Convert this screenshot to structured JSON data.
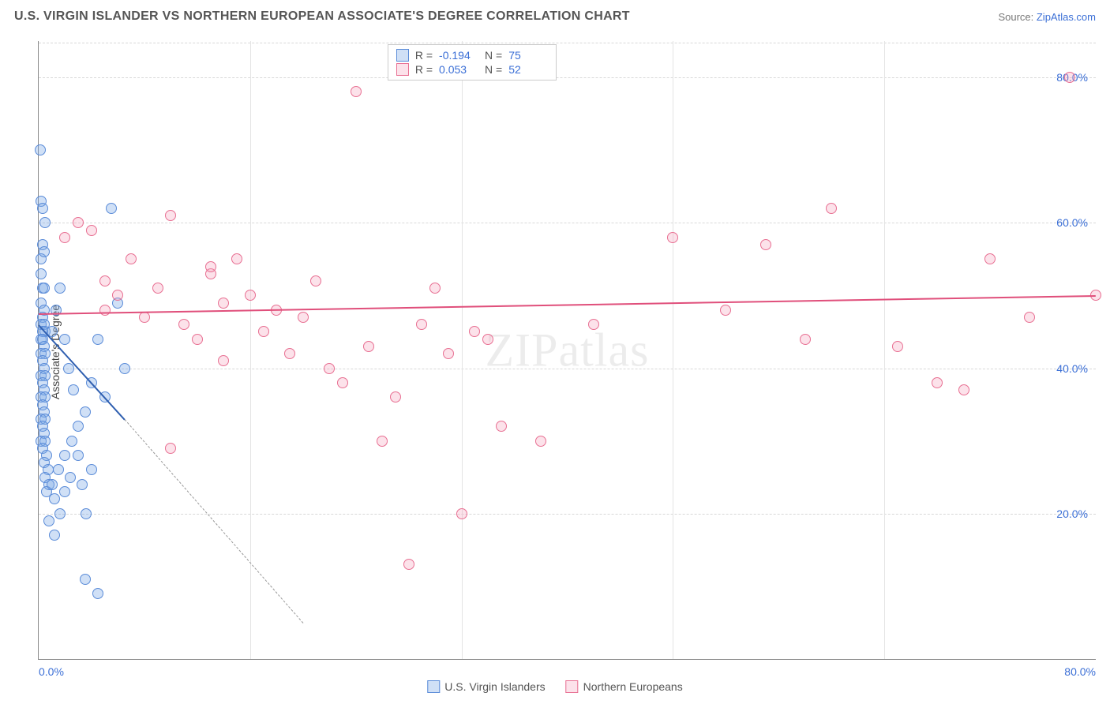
{
  "title": "U.S. VIRGIN ISLANDER VS NORTHERN EUROPEAN ASSOCIATE'S DEGREE CORRELATION CHART",
  "source_label": "Source: ",
  "source_name": "ZipAtlas.com",
  "ylabel": "Associate's Degree",
  "watermark_a": "ZIP",
  "watermark_b": "atlas",
  "chart": {
    "type": "scatter",
    "xlim": [
      0,
      80
    ],
    "ylim": [
      0,
      85
    ],
    "grid_color": "#d8d8d8",
    "background_color": "#ffffff",
    "axis_color": "#888",
    "y_ticks": [
      {
        "v": 20,
        "label": "20.0%"
      },
      {
        "v": 40,
        "label": "40.0%"
      },
      {
        "v": 60,
        "label": "60.0%"
      },
      {
        "v": 80,
        "label": "80.0%"
      }
    ],
    "x_ticks_minor": [
      16,
      32,
      48,
      64
    ],
    "x_tick_left": "0.0%",
    "x_tick_right": "80.0%",
    "marker_radius": 7,
    "marker_border_width": 1.2,
    "series": [
      {
        "name": "U.S. Virgin Islanders",
        "fill": "rgba(120,165,230,0.35)",
        "stroke": "#5a8bd8",
        "R": "-0.194",
        "N": "75",
        "trend": {
          "x1": 0,
          "y1": 46,
          "x2": 6.5,
          "y2": 33,
          "solid": true,
          "dash_ext": {
            "x2": 20,
            "y2": 5
          },
          "color": "#2f5fb0",
          "width": 2
        },
        "points": [
          [
            0.1,
            70
          ],
          [
            0.2,
            63
          ],
          [
            0.3,
            62
          ],
          [
            0.3,
            57
          ],
          [
            0.2,
            55
          ],
          [
            0.4,
            56
          ],
          [
            0.2,
            53
          ],
          [
            0.3,
            51
          ],
          [
            0.4,
            51
          ],
          [
            0.2,
            49
          ],
          [
            0.4,
            48
          ],
          [
            0.3,
            47
          ],
          [
            0.2,
            46
          ],
          [
            0.4,
            46
          ],
          [
            0.3,
            45
          ],
          [
            0.5,
            45
          ],
          [
            0.2,
            44
          ],
          [
            0.3,
            44
          ],
          [
            0.4,
            43
          ],
          [
            0.2,
            42
          ],
          [
            0.5,
            42
          ],
          [
            0.3,
            41
          ],
          [
            0.4,
            40
          ],
          [
            0.2,
            39
          ],
          [
            0.5,
            39
          ],
          [
            0.3,
            38
          ],
          [
            0.4,
            37
          ],
          [
            0.2,
            36
          ],
          [
            0.5,
            36
          ],
          [
            0.3,
            35
          ],
          [
            0.4,
            34
          ],
          [
            0.2,
            33
          ],
          [
            0.5,
            33
          ],
          [
            0.3,
            32
          ],
          [
            0.4,
            31
          ],
          [
            0.2,
            30
          ],
          [
            0.5,
            30
          ],
          [
            0.3,
            29
          ],
          [
            0.6,
            28
          ],
          [
            0.4,
            27
          ],
          [
            0.7,
            26
          ],
          [
            0.5,
            25
          ],
          [
            0.8,
            24
          ],
          [
            0.6,
            23
          ],
          [
            1.0,
            24
          ],
          [
            1.2,
            22
          ],
          [
            1.5,
            26
          ],
          [
            2.0,
            28
          ],
          [
            2.5,
            30
          ],
          [
            3.0,
            32
          ],
          [
            3.5,
            34
          ],
          [
            4.0,
            38
          ],
          [
            4.5,
            44
          ],
          [
            5.0,
            36
          ],
          [
            5.5,
            62
          ],
          [
            6.0,
            49
          ],
          [
            6.5,
            40
          ],
          [
            1.0,
            45
          ],
          [
            1.3,
            48
          ],
          [
            1.6,
            51
          ],
          [
            2.0,
            44
          ],
          [
            2.3,
            40
          ],
          [
            2.6,
            37
          ],
          [
            3.0,
            28
          ],
          [
            3.3,
            24
          ],
          [
            3.6,
            20
          ],
          [
            4.0,
            26
          ],
          [
            0.8,
            19
          ],
          [
            1.2,
            17
          ],
          [
            1.6,
            20
          ],
          [
            2.0,
            23
          ],
          [
            2.4,
            25
          ],
          [
            3.5,
            11
          ],
          [
            4.5,
            9
          ],
          [
            0.5,
            60
          ]
        ]
      },
      {
        "name": "Northern Europeans",
        "fill": "rgba(245,160,185,0.30)",
        "stroke": "#e86f92",
        "R": "0.053",
        "N": "52",
        "trend": {
          "x1": 0,
          "y1": 47.5,
          "x2": 80,
          "y2": 50,
          "solid": true,
          "color": "#e04f7b",
          "width": 2
        },
        "points": [
          [
            2,
            58
          ],
          [
            3,
            60
          ],
          [
            4,
            59
          ],
          [
            5,
            52
          ],
          [
            6,
            50
          ],
          [
            7,
            55
          ],
          [
            8,
            47
          ],
          [
            9,
            51
          ],
          [
            10,
            61
          ],
          [
            11,
            46
          ],
          [
            12,
            44
          ],
          [
            13,
            53
          ],
          [
            14,
            49
          ],
          [
            15,
            55
          ],
          [
            16,
            50
          ],
          [
            17,
            45
          ],
          [
            18,
            48
          ],
          [
            19,
            42
          ],
          [
            20,
            47
          ],
          [
            21,
            52
          ],
          [
            22,
            40
          ],
          [
            23,
            38
          ],
          [
            24,
            78
          ],
          [
            25,
            43
          ],
          [
            26,
            30
          ],
          [
            27,
            36
          ],
          [
            28,
            13
          ],
          [
            29,
            46
          ],
          [
            30,
            51
          ],
          [
            31,
            42
          ],
          [
            32,
            20
          ],
          [
            33,
            45
          ],
          [
            34,
            44
          ],
          [
            35,
            32
          ],
          [
            38,
            30
          ],
          [
            42,
            46
          ],
          [
            48,
            58
          ],
          [
            52,
            48
          ],
          [
            55,
            57
          ],
          [
            58,
            44
          ],
          [
            60,
            62
          ],
          [
            65,
            43
          ],
          [
            68,
            38
          ],
          [
            70,
            37
          ],
          [
            72,
            55
          ],
          [
            75,
            47
          ],
          [
            78,
            80
          ],
          [
            80,
            50
          ],
          [
            10,
            29
          ],
          [
            14,
            41
          ],
          [
            13,
            54
          ],
          [
            5,
            48
          ]
        ]
      }
    ]
  },
  "stats_box": {
    "R_label": "R =",
    "N_label": "N ="
  },
  "bottom_legend": {
    "items": [
      "U.S. Virgin Islanders",
      "Northern Europeans"
    ]
  }
}
